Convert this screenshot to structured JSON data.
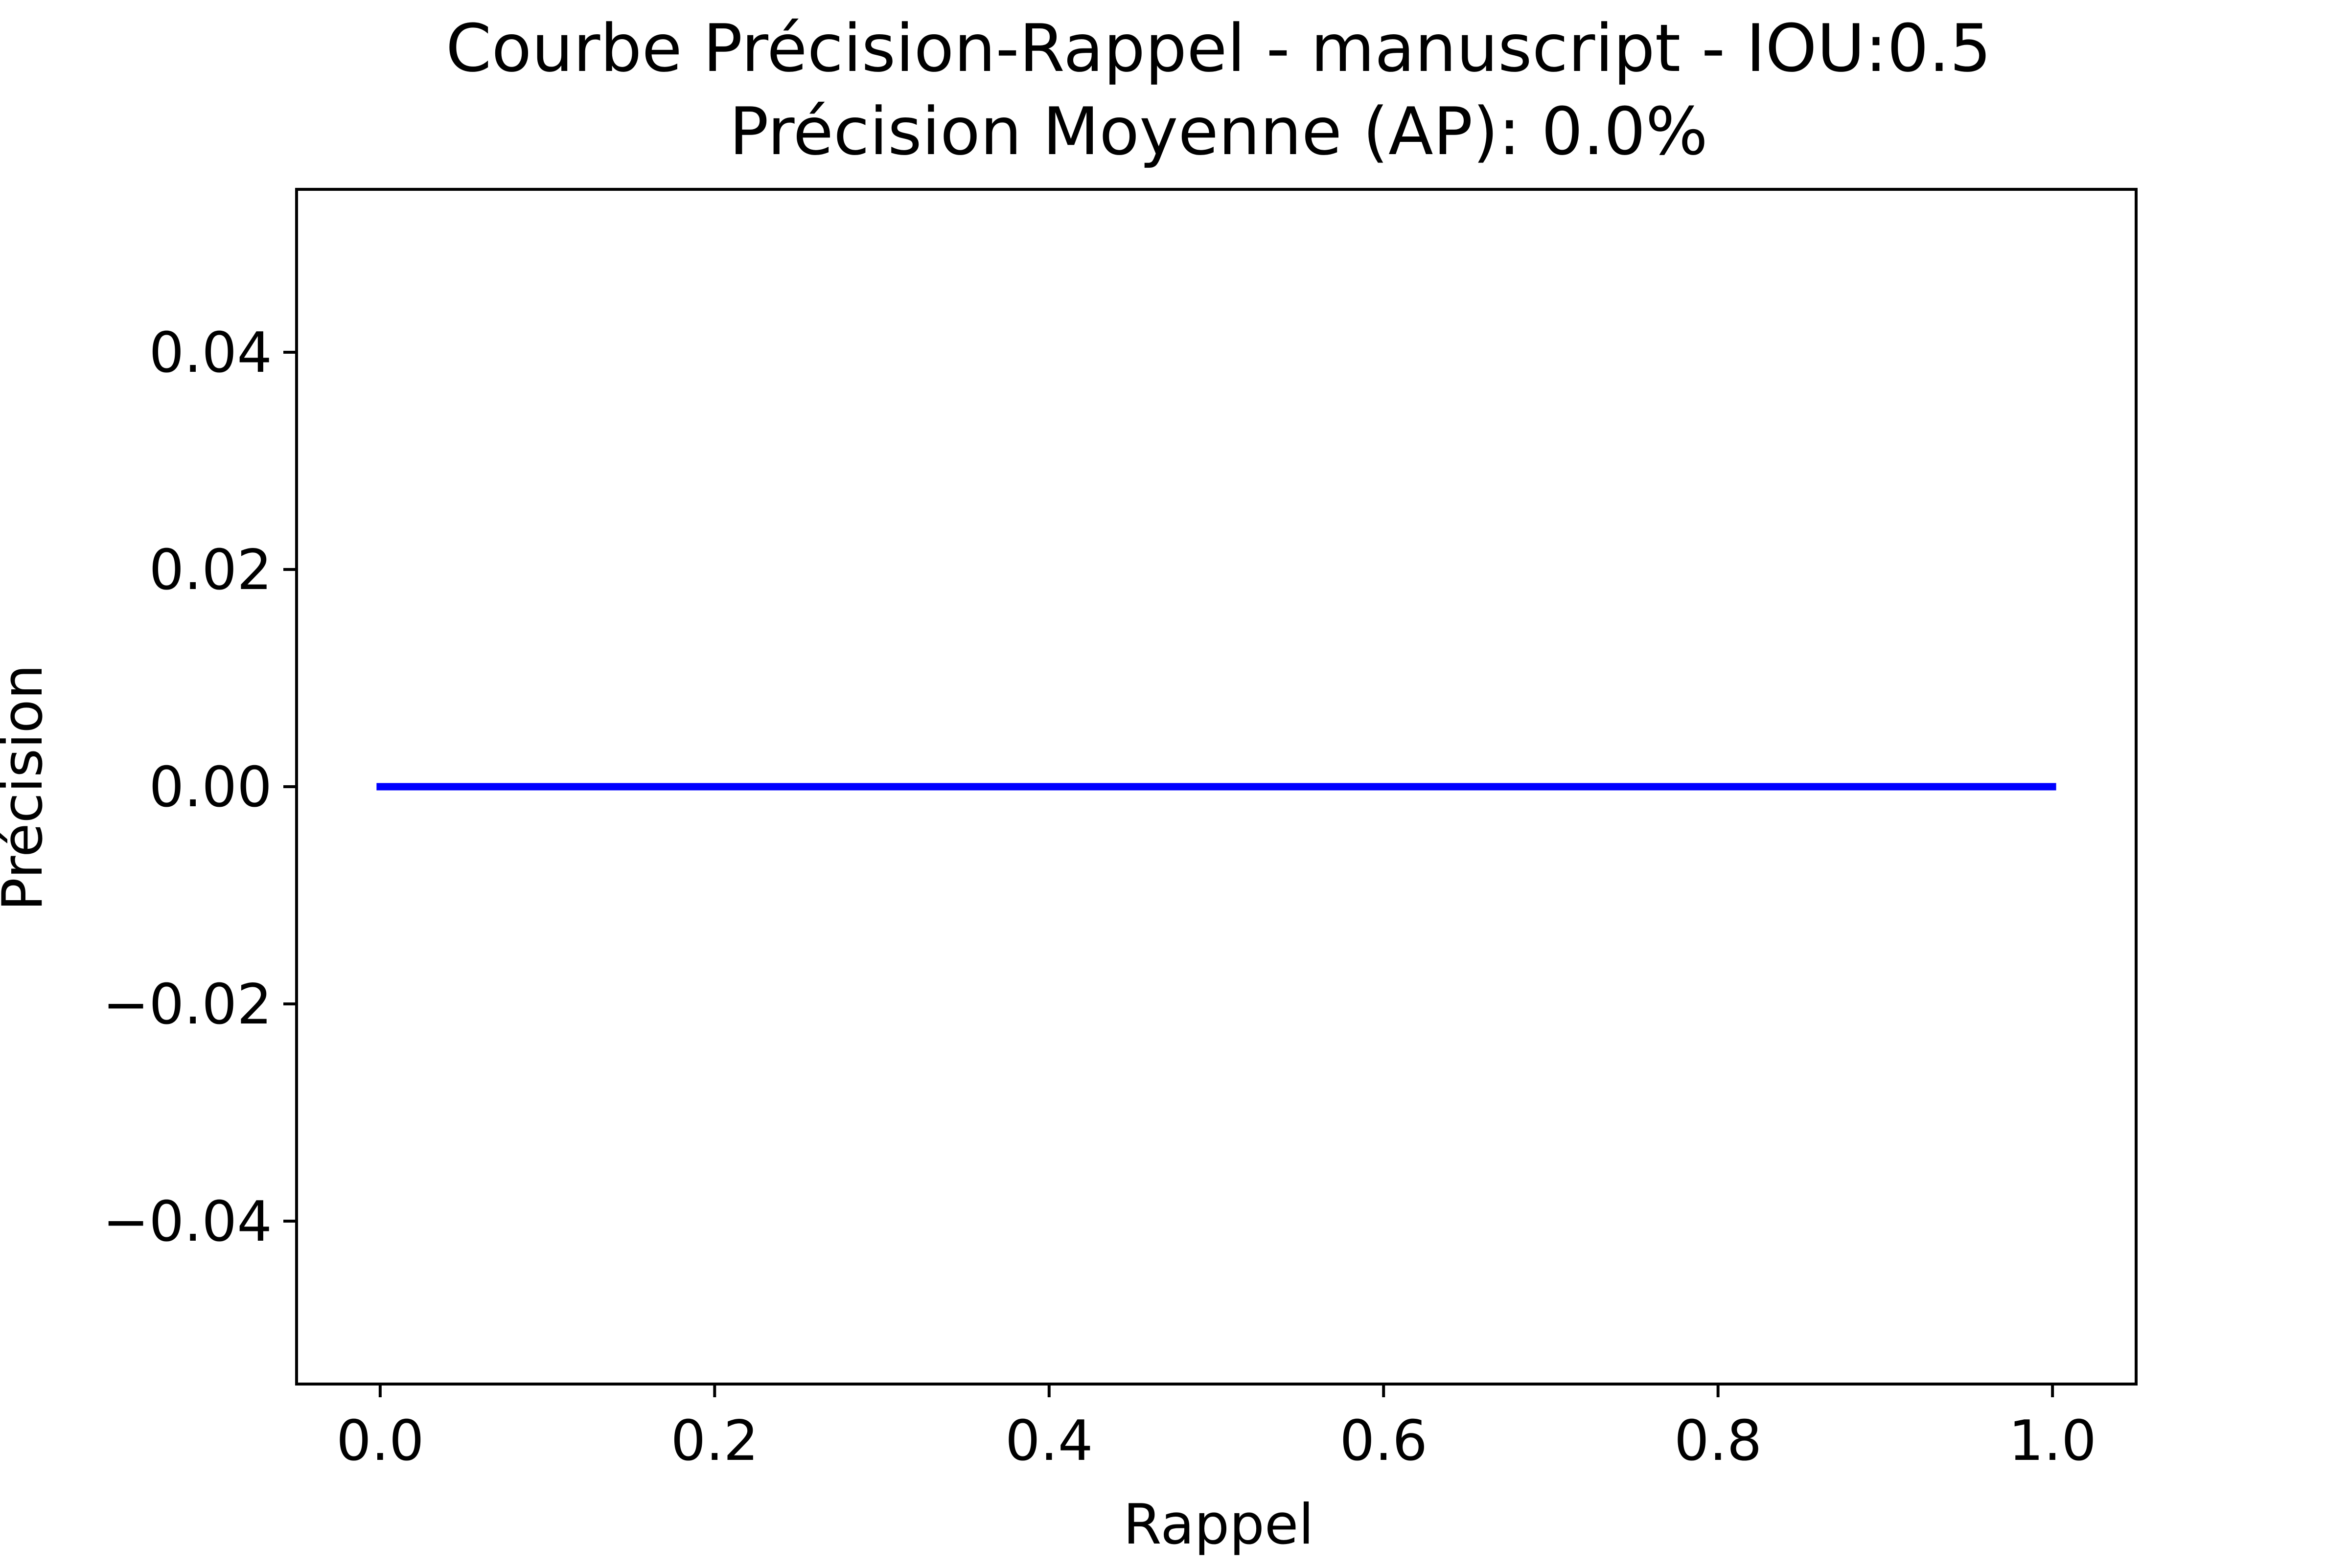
{
  "chart_data": {
    "type": "line",
    "title": "Courbe Précision-Rappel - manuscript - IOU:0.5",
    "subtitle": "Précision Moyenne (AP): 0.0%",
    "xlabel": "Rappel",
    "ylabel": "Précision",
    "xlim": [
      -0.05,
      1.05
    ],
    "ylim": [
      -0.055,
      0.055
    ],
    "xticks": [
      0.0,
      0.2,
      0.4,
      0.6,
      0.8,
      1.0
    ],
    "xtick_labels": [
      "0.0",
      "0.2",
      "0.4",
      "0.6",
      "0.8",
      "1.0"
    ],
    "yticks": [
      0.04,
      0.02,
      0.0,
      -0.02,
      -0.04
    ],
    "ytick_labels": [
      "0.04",
      "0.02",
      "0.00",
      "−0.02",
      "−0.04"
    ],
    "grid": false,
    "series": [
      {
        "color": "#0000ff",
        "x": [
          0.0,
          1.0
        ],
        "y": [
          0.0,
          0.0
        ]
      }
    ]
  }
}
